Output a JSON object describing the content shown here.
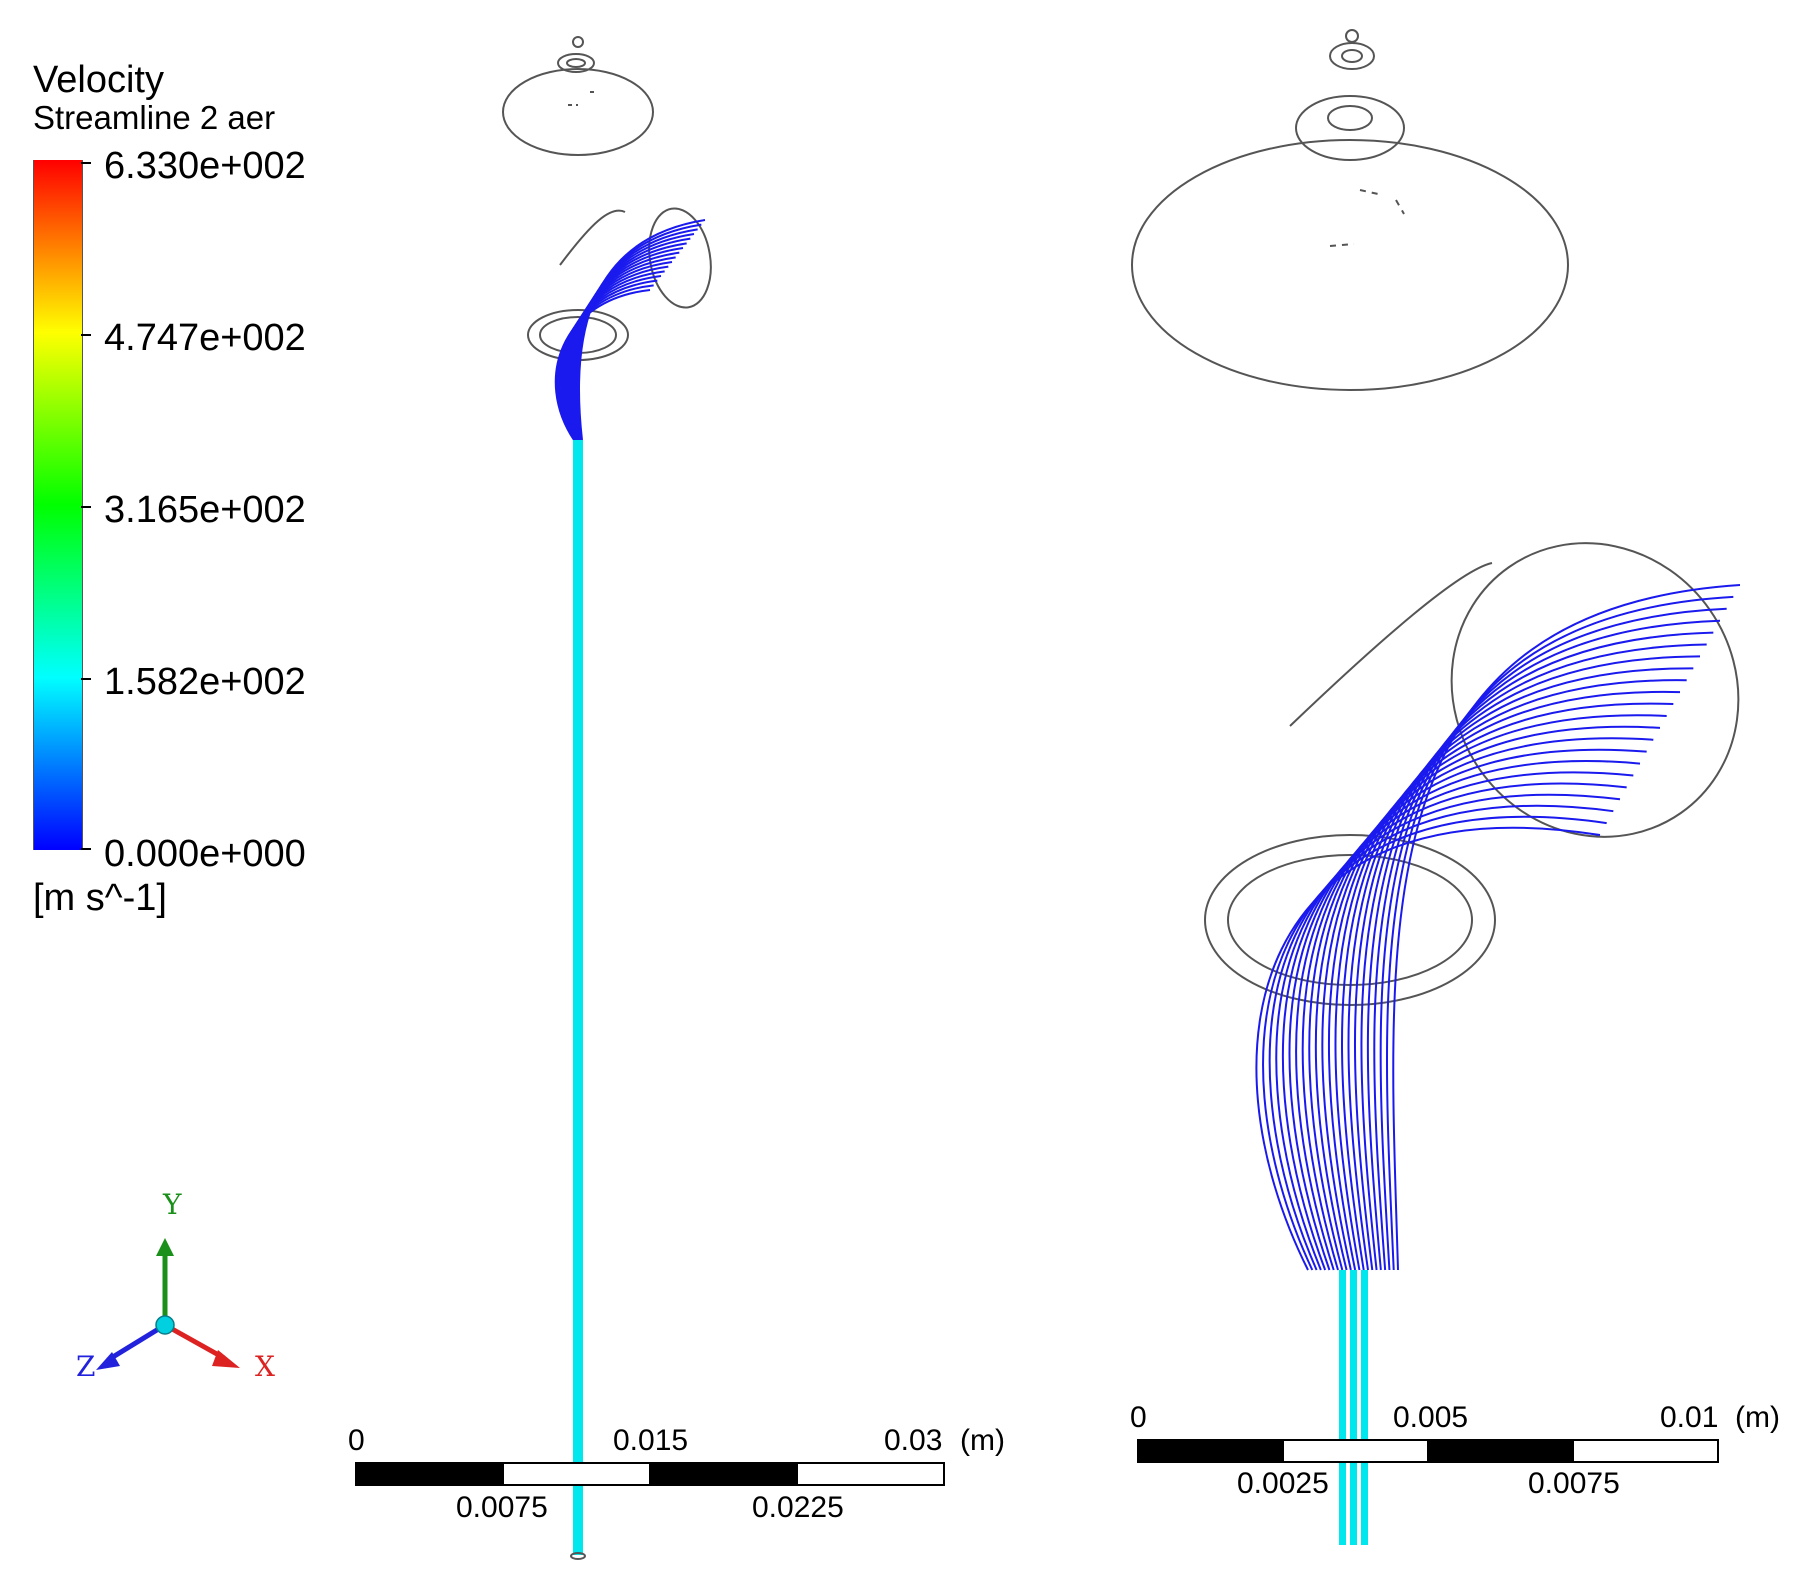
{
  "legend": {
    "title": "Velocity",
    "subtitle": "Streamline 2 aer",
    "ticks": [
      "6.330e+002",
      "4.747e+002",
      "3.165e+002",
      "1.582e+002",
      "0.000e+000"
    ],
    "units": "[m s^-1]",
    "colormap": [
      "#ff0000",
      "#ff7f00",
      "#ffff00",
      "#7fff00",
      "#00ff00",
      "#00ff7f",
      "#00ffff",
      "#007fff",
      "#0000ff"
    ]
  },
  "axes_triad": {
    "y": "Y",
    "z": "Z",
    "x": "X",
    "y_color": "#1a8f1a",
    "z_color": "#2222dd",
    "x_color": "#dd2222"
  },
  "left_view": {
    "scale_top": [
      "0",
      "0.015",
      "0.03",
      "(m)"
    ],
    "scale_bottom": [
      "0.0075",
      "0.0225"
    ]
  },
  "right_view": {
    "scale_top": [
      "0",
      "0.005",
      "0.01",
      "(m)"
    ],
    "scale_bottom": [
      "0.0025",
      "0.0075"
    ]
  },
  "colors": {
    "streamline": "#1a1aee",
    "jet": "#00e8ee",
    "outline": "#555555"
  }
}
